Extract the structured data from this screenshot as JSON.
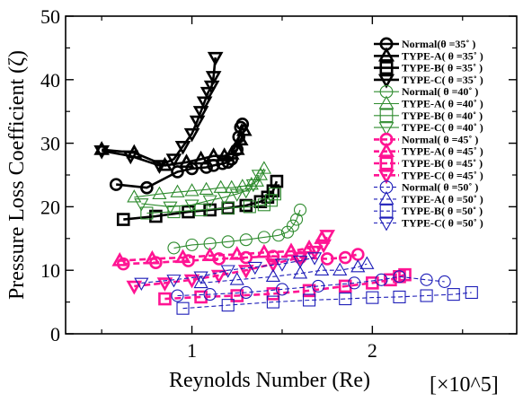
{
  "chart_data": {
    "type": "scatter",
    "title": "",
    "xlabel": "Reynolds Number (Re)",
    "xscale_note": "[×10^5]",
    "ylabel": "Pressure Loss Coefficient (ζ)",
    "xlim": [
      0.3,
      2.8
    ],
    "ylim": [
      0,
      50
    ],
    "xticks": [
      "1",
      "2"
    ],
    "yticks": [
      "0",
      "10",
      "20",
      "30",
      "40",
      "50"
    ],
    "legend_position": "top-right",
    "grid": false,
    "series": [
      {
        "name": "Normal(θ =35˚ )",
        "marker": "circle",
        "filled": false,
        "color": "#000000",
        "line": "solid",
        "width": "bold",
        "points": [
          [
            0.58,
            23.5
          ],
          [
            0.75,
            23.0
          ],
          [
            0.92,
            25.5
          ],
          [
            1.0,
            26.0
          ],
          [
            1.08,
            26.2
          ],
          [
            1.12,
            26.5
          ],
          [
            1.17,
            26.8
          ],
          [
            1.2,
            27.0
          ],
          [
            1.22,
            27.5
          ],
          [
            1.25,
            29.0
          ],
          [
            1.26,
            31.0
          ],
          [
            1.27,
            32.5
          ],
          [
            1.28,
            33.0
          ]
        ]
      },
      {
        "name": "TYPE-A( θ =35˚ )",
        "marker": "triangle-up",
        "filled": false,
        "color": "#000000",
        "line": "solid",
        "width": "bold",
        "points": [
          [
            0.5,
            29.0
          ],
          [
            0.68,
            28.5
          ],
          [
            0.85,
            26.5
          ],
          [
            0.97,
            27.0
          ],
          [
            1.05,
            27.5
          ],
          [
            1.12,
            28.0
          ],
          [
            1.18,
            28.0
          ],
          [
            1.22,
            28.3
          ],
          [
            1.25,
            29.0
          ],
          [
            1.27,
            30.5
          ],
          [
            1.29,
            32.0
          ]
        ]
      },
      {
        "name": "TYPE-B( θ =35˚ )",
        "marker": "square",
        "filled": false,
        "color": "#000000",
        "line": "solid",
        "width": "bold",
        "points": [
          [
            0.62,
            18.0
          ],
          [
            0.8,
            18.5
          ],
          [
            0.98,
            19.2
          ],
          [
            1.1,
            19.5
          ],
          [
            1.2,
            19.8
          ],
          [
            1.3,
            20.2
          ],
          [
            1.38,
            20.8
          ],
          [
            1.42,
            21.5
          ],
          [
            1.45,
            22.5
          ],
          [
            1.47,
            24.0
          ]
        ]
      },
      {
        "name": "TYPE-C( θ =35˚ )",
        "marker": "triangle-down",
        "filled": false,
        "color": "#000000",
        "line": "solid",
        "width": "bold",
        "points": [
          [
            0.5,
            28.8
          ],
          [
            0.66,
            28.0
          ],
          [
            0.82,
            26.5
          ],
          [
            0.9,
            27.5
          ],
          [
            0.95,
            29.5
          ],
          [
            1.0,
            31.5
          ],
          [
            1.03,
            33.5
          ],
          [
            1.05,
            35.0
          ],
          [
            1.07,
            36.5
          ],
          [
            1.09,
            38.0
          ],
          [
            1.11,
            39.0
          ],
          [
            1.12,
            40.5
          ],
          [
            1.13,
            43.5
          ]
        ]
      },
      {
        "name": "Normal( θ =40˚ )",
        "marker": "circle",
        "filled": false,
        "color": "#2e8b2e",
        "line": "solid",
        "width": "thin",
        "points": [
          [
            0.9,
            13.5
          ],
          [
            1.0,
            14.0
          ],
          [
            1.1,
            14.2
          ],
          [
            1.2,
            14.5
          ],
          [
            1.3,
            14.8
          ],
          [
            1.4,
            15.2
          ],
          [
            1.48,
            15.5
          ],
          [
            1.53,
            16.0
          ],
          [
            1.56,
            17.0
          ],
          [
            1.58,
            18.0
          ],
          [
            1.6,
            19.5
          ]
        ]
      },
      {
        "name": "TYPE-A( θ =40˚ )",
        "marker": "triangle-up",
        "filled": false,
        "color": "#2e8b2e",
        "line": "solid",
        "width": "thin",
        "points": [
          [
            0.68,
            21.5
          ],
          [
            0.82,
            22.0
          ],
          [
            0.92,
            22.3
          ],
          [
            1.0,
            22.5
          ],
          [
            1.08,
            22.7
          ],
          [
            1.16,
            23.0
          ],
          [
            1.22,
            23.0
          ],
          [
            1.28,
            23.2
          ],
          [
            1.33,
            23.5
          ],
          [
            1.36,
            24.0
          ],
          [
            1.38,
            25.0
          ],
          [
            1.4,
            26.0
          ]
        ]
      },
      {
        "name": "TYPE-B( θ =40˚ )",
        "marker": "square",
        "filled": false,
        "color": "#2e8b2e",
        "line": "solid",
        "width": "thin",
        "points": [
          [
            0.75,
            19.0
          ],
          [
            0.9,
            19.2
          ],
          [
            1.05,
            19.5
          ],
          [
            1.2,
            19.8
          ],
          [
            1.32,
            20.0
          ],
          [
            1.4,
            20.3
          ],
          [
            1.44,
            21.0
          ],
          [
            1.46,
            22.0
          ]
        ]
      },
      {
        "name": "TYPE-C( θ =40˚ )",
        "marker": "triangle-down",
        "filled": false,
        "color": "#2e8b2e",
        "line": "solid",
        "width": "thin",
        "points": [
          [
            0.72,
            20.5
          ],
          [
            0.88,
            20.0
          ],
          [
            1.0,
            20.3
          ],
          [
            1.1,
            21.0
          ],
          [
            1.18,
            21.5
          ],
          [
            1.25,
            22.0
          ],
          [
            1.3,
            22.5
          ],
          [
            1.34,
            23.5
          ],
          [
            1.37,
            25.0
          ]
        ]
      },
      {
        "name": "Normal( θ =45˚ )",
        "marker": "circle",
        "filled": false,
        "color": "#ff1493",
        "line": "dashed",
        "width": "bold",
        "points": [
          [
            0.62,
            11.0
          ],
          [
            0.8,
            11.2
          ],
          [
            0.98,
            11.5
          ],
          [
            1.15,
            11.8
          ],
          [
            1.3,
            12.0
          ],
          [
            1.45,
            12.2
          ],
          [
            1.6,
            12.0
          ],
          [
            1.75,
            11.8
          ],
          [
            1.85,
            12.0
          ],
          [
            1.92,
            12.5
          ]
        ]
      },
      {
        "name": "TYPE-A( θ =45˚ )",
        "marker": "triangle-up",
        "filled": false,
        "color": "#ff1493",
        "line": "dashed",
        "width": "bold",
        "points": [
          [
            0.6,
            11.5
          ],
          [
            0.78,
            11.8
          ],
          [
            0.95,
            12.0
          ],
          [
            1.1,
            12.3
          ],
          [
            1.25,
            12.5
          ],
          [
            1.4,
            12.8
          ],
          [
            1.55,
            13.0
          ],
          [
            1.65,
            13.5
          ],
          [
            1.72,
            15.0
          ]
        ]
      },
      {
        "name": "TYPE-B( θ =45˚ )",
        "marker": "square",
        "filled": false,
        "color": "#ff1493",
        "line": "dashed",
        "width": "bold",
        "points": [
          [
            0.85,
            5.5
          ],
          [
            1.05,
            5.8
          ],
          [
            1.25,
            6.0
          ],
          [
            1.45,
            6.3
          ],
          [
            1.65,
            6.8
          ],
          [
            1.85,
            7.5
          ],
          [
            2.0,
            8.0
          ],
          [
            2.1,
            8.5
          ],
          [
            2.15,
            9.0
          ],
          [
            2.18,
            9.3
          ]
        ]
      },
      {
        "name": "TYPE-C( θ =45˚ )",
        "marker": "triangle-down",
        "filled": false,
        "color": "#ff1493",
        "line": "dashed",
        "width": "bold",
        "points": [
          [
            0.68,
            7.5
          ],
          [
            0.85,
            8.0
          ],
          [
            1.0,
            8.5
          ],
          [
            1.15,
            9.2
          ],
          [
            1.3,
            10.0
          ],
          [
            1.45,
            11.0
          ],
          [
            1.6,
            12.0
          ],
          [
            1.68,
            13.0
          ],
          [
            1.73,
            14.0
          ],
          [
            1.75,
            15.5
          ]
        ]
      },
      {
        "name": "Normal( θ =50˚ )",
        "marker": "circle",
        "filled": false,
        "color": "#1c1cb8",
        "line": "dashed",
        "width": "thin",
        "points": [
          [
            0.92,
            6.0
          ],
          [
            1.1,
            6.2
          ],
          [
            1.3,
            6.5
          ],
          [
            1.5,
            7.0
          ],
          [
            1.7,
            7.5
          ],
          [
            1.9,
            8.0
          ],
          [
            2.05,
            8.5
          ],
          [
            2.15,
            9.0
          ],
          [
            2.3,
            8.5
          ],
          [
            2.4,
            8.2
          ]
        ]
      },
      {
        "name": "TYPE-A( θ =50˚ )",
        "marker": "triangle-up",
        "filled": false,
        "color": "#1c1cb8",
        "line": "dashed",
        "width": "thin",
        "points": [
          [
            1.05,
            8.0
          ],
          [
            1.25,
            8.5
          ],
          [
            1.45,
            9.0
          ],
          [
            1.6,
            9.5
          ],
          [
            1.72,
            10.0
          ],
          [
            1.82,
            10.0
          ],
          [
            1.92,
            10.5
          ],
          [
            1.97,
            11.0
          ]
        ]
      },
      {
        "name": "TYPE-B( θ =50˚ )",
        "marker": "square",
        "filled": false,
        "color": "#1c1cb8",
        "line": "dashed",
        "width": "thin",
        "points": [
          [
            0.95,
            4.0
          ],
          [
            1.2,
            4.5
          ],
          [
            1.45,
            5.0
          ],
          [
            1.65,
            5.3
          ],
          [
            1.85,
            5.5
          ],
          [
            2.0,
            5.7
          ],
          [
            2.15,
            5.8
          ],
          [
            2.3,
            6.0
          ],
          [
            2.45,
            6.2
          ],
          [
            2.55,
            6.5
          ]
        ]
      },
      {
        "name": "TYPE-C( θ =50˚ )",
        "marker": "triangle-down",
        "filled": false,
        "color": "#1c1cb8",
        "line": "dashed",
        "width": "thin",
        "points": [
          [
            0.72,
            8.0
          ],
          [
            0.9,
            8.5
          ],
          [
            1.05,
            9.0
          ],
          [
            1.2,
            10.0
          ],
          [
            1.35,
            10.5
          ],
          [
            1.5,
            11.0
          ],
          [
            1.6,
            11.5
          ],
          [
            1.68,
            12.0
          ]
        ]
      }
    ]
  }
}
